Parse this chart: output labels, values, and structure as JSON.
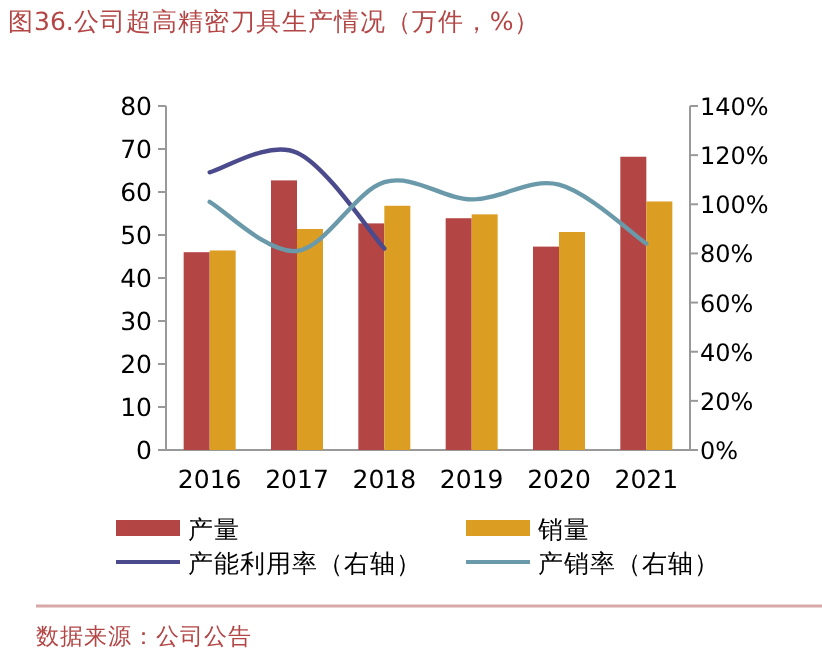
{
  "chart_data": {
    "type": "bar",
    "title": "图36.公司超高精密刀具生产情况（万件，%）",
    "categories": [
      "2016",
      "2017",
      "2018",
      "2019",
      "2020",
      "2021"
    ],
    "series": [
      {
        "name": "产量",
        "color": "#b34545",
        "values": [
          46,
          62.7,
          52.7,
          53.9,
          47.3,
          68.2
        ]
      },
      {
        "name": "销量",
        "color": "#dc9e22",
        "values": [
          46.4,
          51.4,
          56.8,
          54.8,
          50.7,
          57.8
        ]
      },
      {
        "name": "产能利用率（右轴）",
        "type": "line",
        "axis": "y2",
        "color": "#4a4a8c",
        "values": [
          113,
          121,
          82,
          null,
          null,
          null
        ]
      },
      {
        "name": "产销率（右轴）",
        "type": "line",
        "axis": "y2",
        "color": "#6a9aaa",
        "values": [
          101,
          81,
          109,
          102,
          108,
          84
        ]
      }
    ],
    "ylim": [
      0,
      80
    ],
    "yticks": [
      0,
      10,
      20,
      30,
      40,
      50,
      60,
      70,
      80
    ],
    "y2lim": [
      0,
      140
    ],
    "y2ticks": [
      {
        "value": 0,
        "label": "0%"
      },
      {
        "value": 20,
        "label": "20%"
      },
      {
        "value": 40,
        "label": "40%"
      },
      {
        "value": 60,
        "label": "60%"
      },
      {
        "value": 80,
        "label": "80%"
      },
      {
        "value": 100,
        "label": "100%"
      },
      {
        "value": 120,
        "label": "120%"
      },
      {
        "value": 140,
        "label": "140%"
      }
    ],
    "legend": "bottom",
    "grid": false,
    "annotations": [
      "数据来源：公司公告"
    ]
  }
}
